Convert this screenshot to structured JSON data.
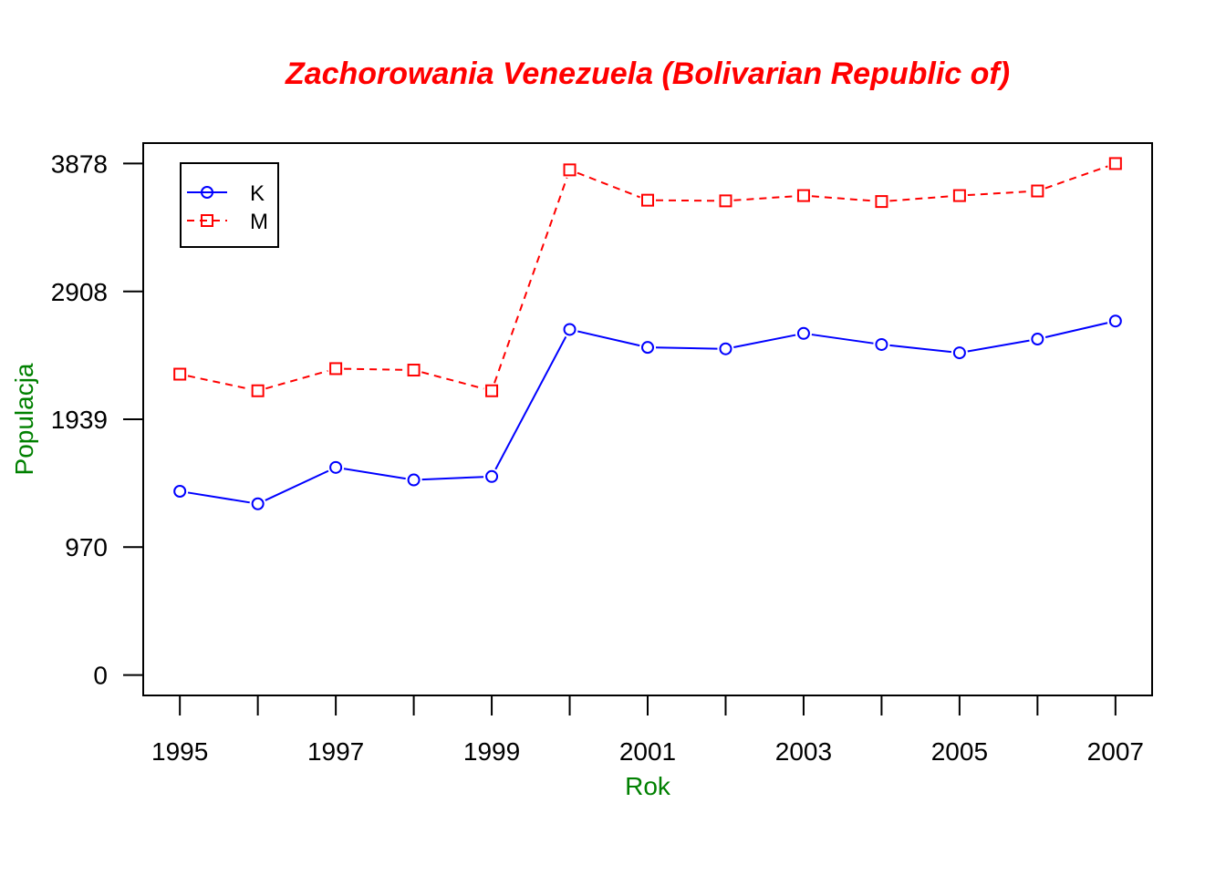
{
  "chart_data": {
    "type": "line",
    "title": "Zachorowania Venezuela (Bolivarian Republic of)",
    "xlabel": "Rok",
    "ylabel": "Populacja",
    "x": [
      1995,
      1996,
      1997,
      1998,
      1999,
      2000,
      2001,
      2002,
      2003,
      2004,
      2005,
      2006,
      2007
    ],
    "x_tick_labels": [
      "1995",
      "1997",
      "1999",
      "2001",
      "2003",
      "2005",
      "2007"
    ],
    "y_ticks": [
      0,
      970,
      1939,
      2908,
      3878
    ],
    "y_tick_labels": [
      "0",
      "970",
      "1939",
      "2908",
      "3878"
    ],
    "xlim": [
      1994.53,
      2007.47
    ],
    "ylim": [
      -155,
      4033
    ],
    "grid": false,
    "legend_position": "top-left",
    "series": [
      {
        "name": "K",
        "color": "#0000ff",
        "line_style": "solid",
        "marker": "circle",
        "values": [
          1393,
          1298,
          1574,
          1479,
          1505,
          2620,
          2484,
          2473,
          2590,
          2506,
          2443,
          2547,
          2684
        ]
      },
      {
        "name": "M",
        "color": "#ff0000",
        "line_style": "dashed",
        "marker": "square",
        "values": [
          2281,
          2155,
          2323,
          2312,
          2155,
          3830,
          3600,
          3595,
          3635,
          3590,
          3635,
          3670,
          3878
        ]
      }
    ],
    "colors": {
      "title": "#ff0000",
      "axis_labels": "#008000",
      "axes": "#000000"
    }
  }
}
